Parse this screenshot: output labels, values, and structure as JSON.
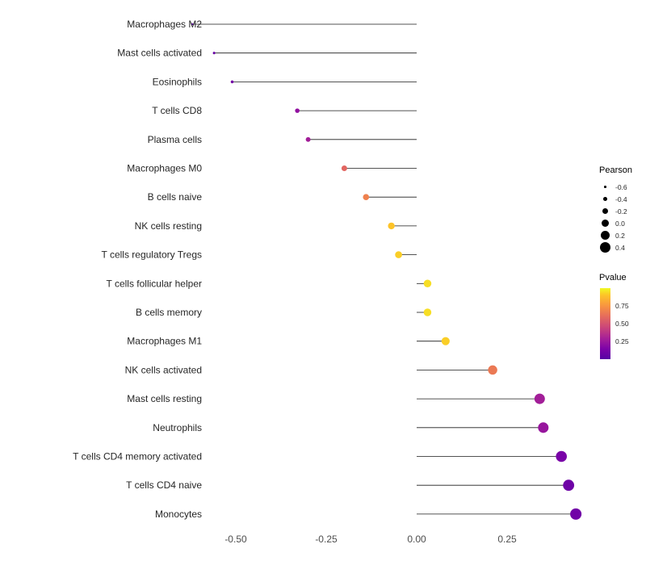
{
  "figure": {
    "background": "#ffffff",
    "stem_color": "#1a1a1a",
    "category_label_color": "#262626",
    "tick_label_color": "#4d4d4d"
  },
  "chart_data": {
    "type": "lollipop",
    "orientation": "horizontal",
    "title": "",
    "xlabel": "",
    "ylabel": "",
    "x_axis": {
      "ticks": [
        -0.5,
        -0.25,
        0.0,
        0.25
      ],
      "tick_labels": [
        "-0.50",
        "-0.25",
        "0.00",
        "0.25"
      ],
      "range": [
        -0.68,
        0.52
      ]
    },
    "grid": "off",
    "baseline_x": 0,
    "categories": [
      "Macrophages M2",
      "Mast cells activated",
      "Eosinophils",
      "T cells CD8",
      "Plasma cells",
      "Macrophages M0",
      "B cells naive",
      "NK cells resting",
      "T cells regulatory  Tregs",
      "T cells follicular helper",
      "B cells memory",
      "Macrophages M1",
      "NK cells activated",
      "Mast cells resting",
      "Neutrophils",
      "T cells CD4 memory activated",
      "T cells CD4 naive",
      "Monocytes"
    ],
    "series": [
      {
        "name": "Pearson",
        "values": [
          -0.62,
          -0.56,
          -0.51,
          -0.33,
          -0.3,
          -0.2,
          -0.14,
          -0.07,
          -0.05,
          0.03,
          0.03,
          0.08,
          0.21,
          0.34,
          0.35,
          0.4,
          0.42,
          0.44
        ]
      },
      {
        "name": "Pvalue",
        "values": [
          0.04,
          0.07,
          0.11,
          0.22,
          0.28,
          0.58,
          0.68,
          0.9,
          0.92,
          0.95,
          0.95,
          0.92,
          0.65,
          0.28,
          0.24,
          0.13,
          0.09,
          0.1
        ]
      }
    ],
    "size_encoding": "Pearson",
    "color_encoding": "Pvalue"
  },
  "legend_size": {
    "title": "Pearson",
    "values": [
      -0.6,
      -0.4,
      -0.2,
      0.0,
      0.2,
      0.4
    ],
    "labels": [
      "-0.6",
      "-0.4",
      "-0.2",
      "0.0",
      "0.2",
      "0.4"
    ]
  },
  "legend_color": {
    "title": "Pvalue",
    "tick_values": [
      0.75,
      0.5,
      0.25
    ],
    "tick_labels": [
      "0.75",
      "0.50",
      "0.25"
    ],
    "scale_stops": [
      {
        "p": 0.0,
        "color": "#5601A4"
      },
      {
        "p": 0.15,
        "color": "#7E03A8"
      },
      {
        "p": 0.3,
        "color": "#A82296"
      },
      {
        "p": 0.45,
        "color": "#CB4679"
      },
      {
        "p": 0.6,
        "color": "#E56B5D"
      },
      {
        "p": 0.75,
        "color": "#F89441"
      },
      {
        "p": 0.9,
        "color": "#FDC328"
      },
      {
        "p": 1.0,
        "color": "#F0F921"
      }
    ]
  }
}
